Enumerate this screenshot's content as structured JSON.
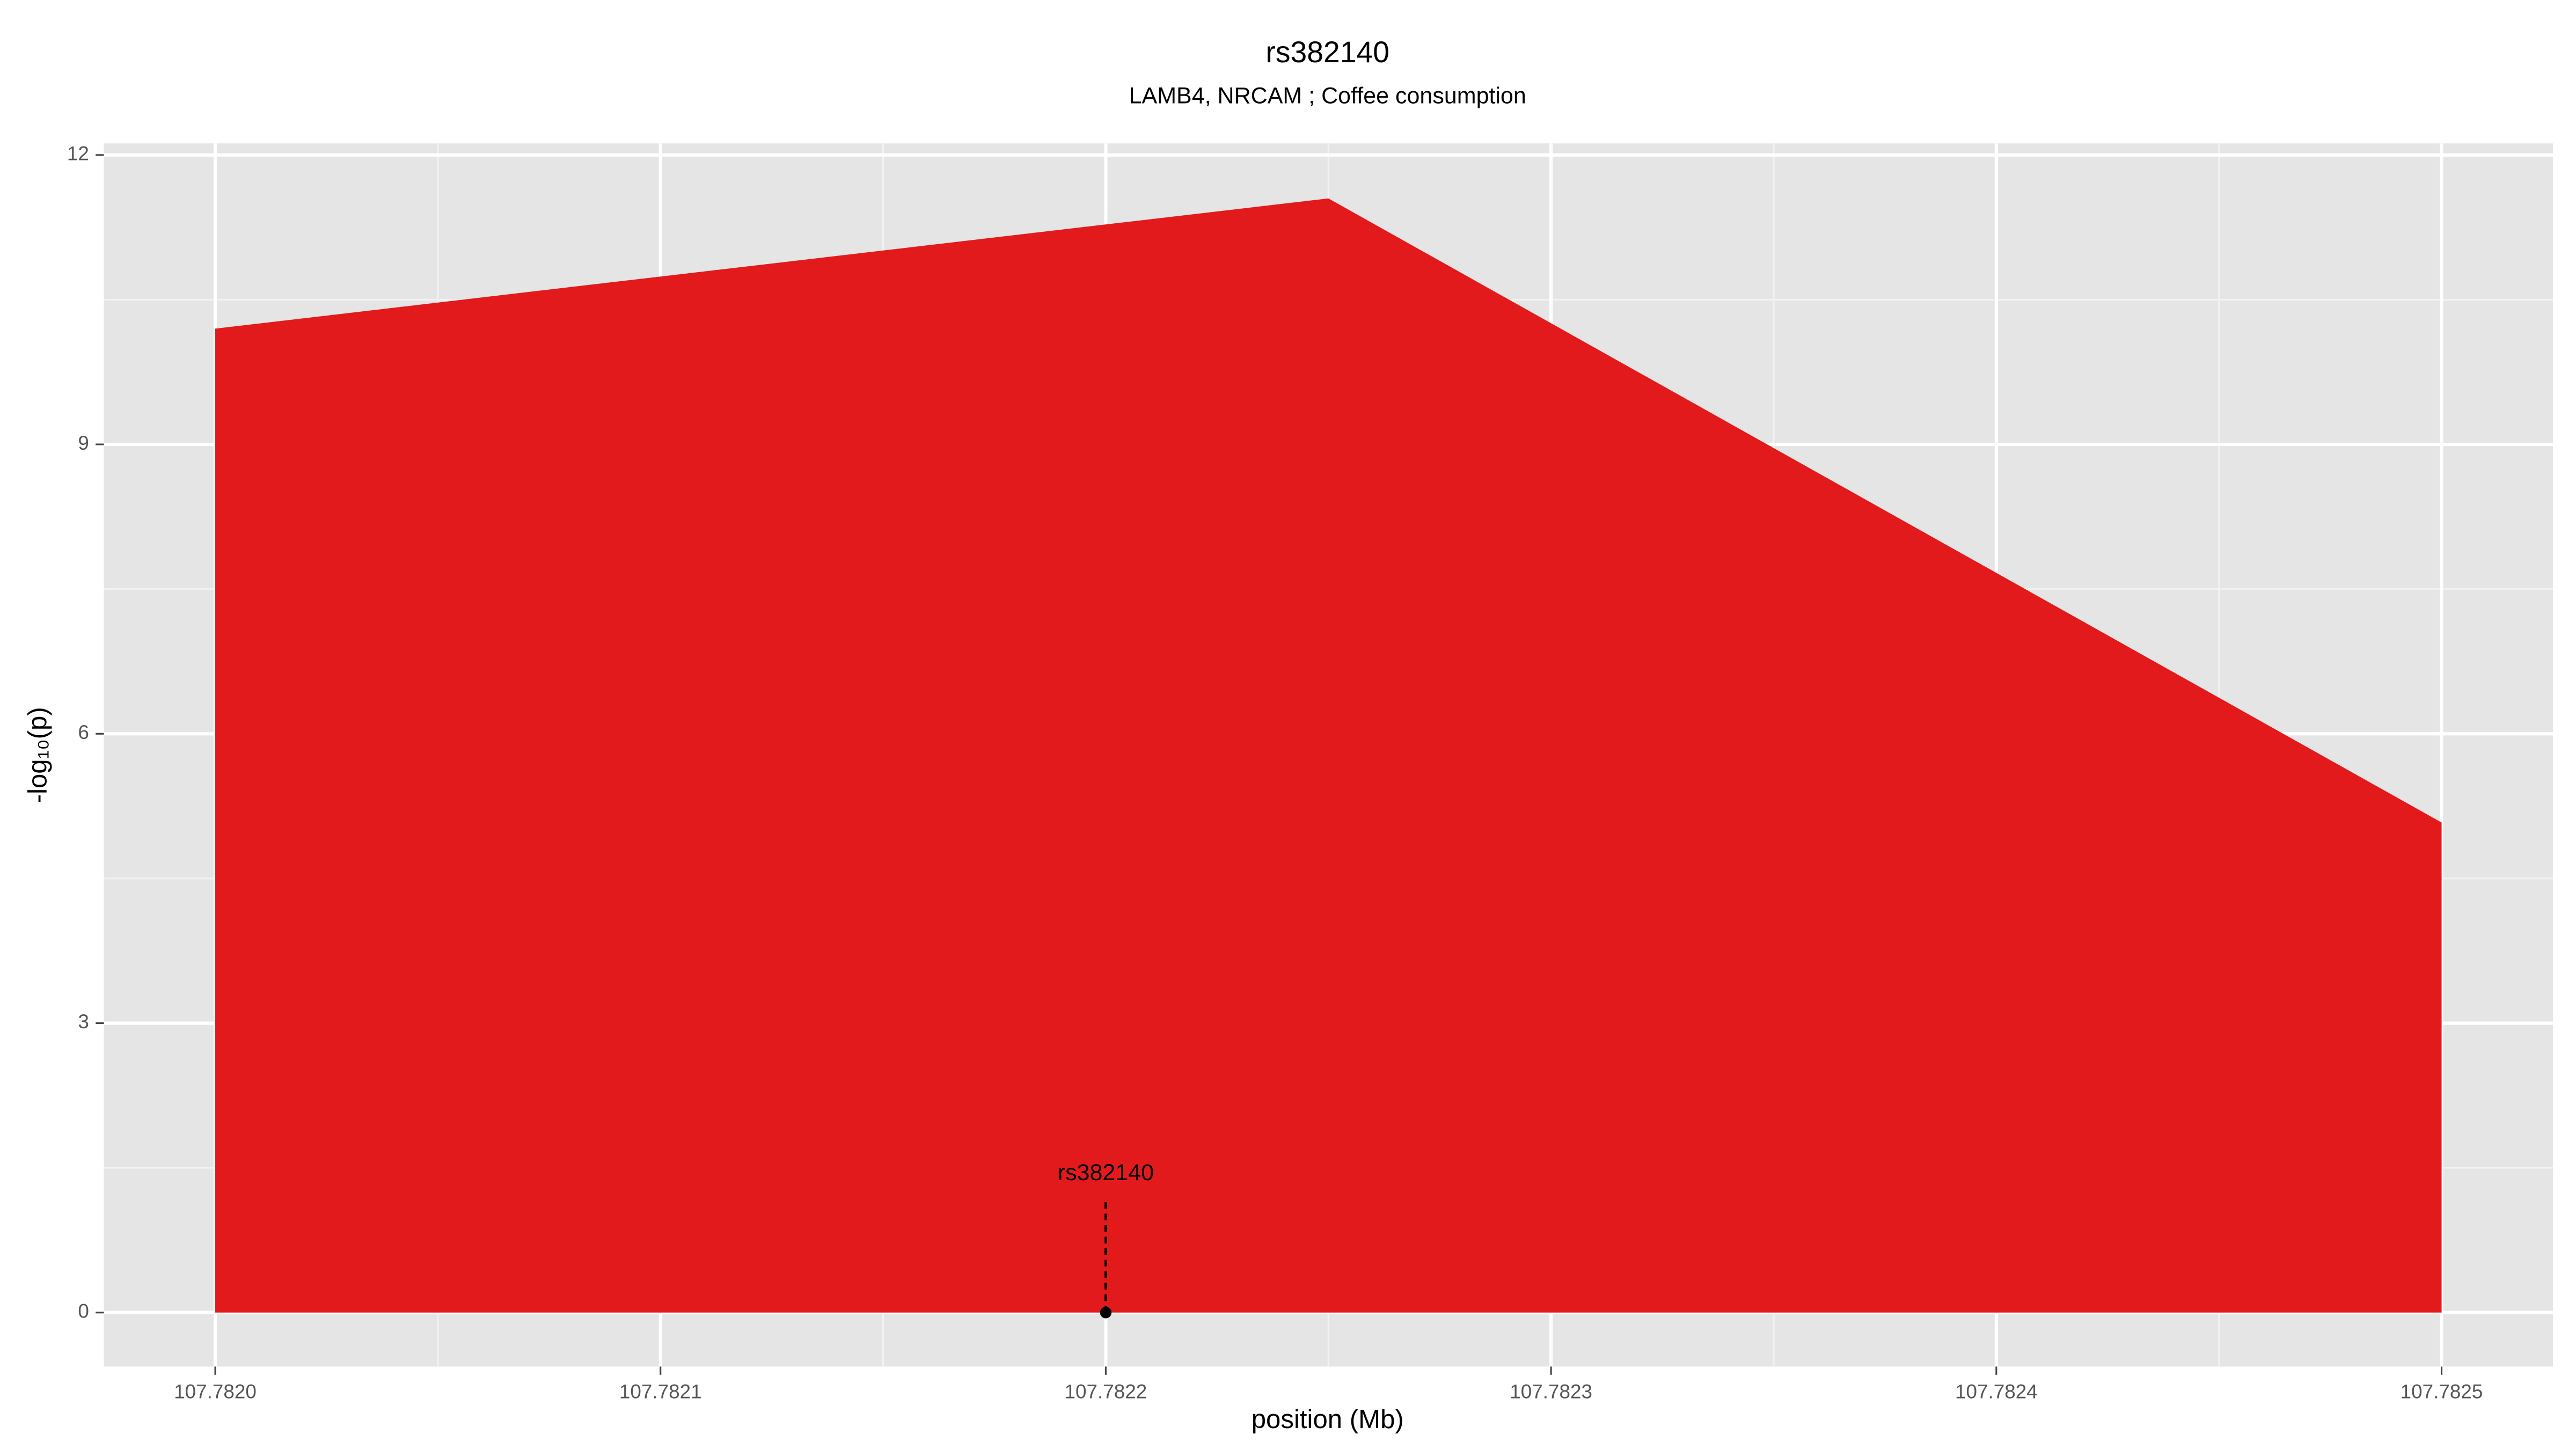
{
  "chart_data": {
    "type": "area",
    "title": "rs382140",
    "subtitle": "LAMB4, NRCAM ; Coffee consumption",
    "xlabel": "position (Mb)",
    "ylabel": "-log₁₀(p)",
    "x": [
      107.782,
      107.78225,
      107.7825
    ],
    "series": [
      {
        "color": "#e31a1c",
        "values": [
          10.2,
          11.55,
          5.08
        ]
      }
    ],
    "xlim": [
      107.781975,
      107.782525
    ],
    "ylim": [
      -0.56,
      12.12
    ],
    "xticks": [
      {
        "value": 107.782,
        "label": "107.7820"
      },
      107.7821,
      107.7822,
      107.7823,
      107.7824,
      107.7825
    ],
    "yticks": [
      0,
      3,
      6,
      9,
      12
    ],
    "grid": true,
    "minor_grid": true,
    "annotations": [
      {
        "label": "rs382140",
        "x": 107.7822,
        "y": 0
      }
    ]
  }
}
